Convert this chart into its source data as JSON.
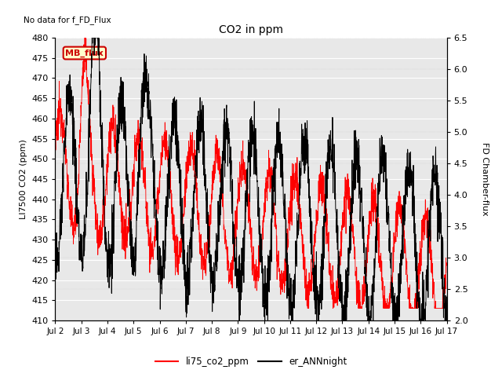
{
  "title": "CO2 in ppm",
  "top_note": "No data for f_FD_Flux",
  "ylabel_left": "LI7500 CO2 (ppm)",
  "ylabel_right": "FD Chamber-flux",
  "ylim_left": [
    410,
    480
  ],
  "ylim_right": [
    2.0,
    6.5
  ],
  "yticks_left": [
    410,
    415,
    420,
    425,
    430,
    435,
    440,
    445,
    450,
    455,
    460,
    465,
    470,
    475,
    480
  ],
  "yticks_right": [
    2.0,
    2.5,
    3.0,
    3.5,
    4.0,
    4.5,
    5.0,
    5.5,
    6.0,
    6.5
  ],
  "xtick_labels": [
    "Jul 2",
    "Jul 3",
    "Jul 4",
    "Jul 5",
    "Jul 6",
    "Jul 7",
    "Jul 8",
    "Jul 9",
    "Jul 10",
    "Jul 11",
    "Jul 12",
    "Jul 13",
    "Jul 14",
    "Jul 15",
    "Jul 16",
    "Jul 17"
  ],
  "legend_labels": [
    "li75_co2_ppm",
    "er_ANNnight"
  ],
  "legend_colors": [
    "red",
    "black"
  ],
  "mb_flux_box_color": "#ffffcc",
  "mb_flux_text_color": "#cc0000",
  "mb_flux_border_color": "#cc0000",
  "line_color_red": "#ff0000",
  "line_color_black": "#000000",
  "background_color": "#e8e8e8"
}
